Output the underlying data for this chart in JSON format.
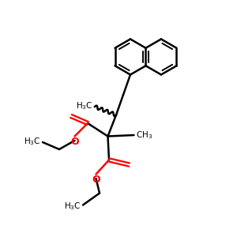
{
  "bg_color": "#ffffff",
  "bond_color": "#000000",
  "oxygen_color": "#ff0000",
  "line_width": 1.8,
  "font_size": 7.5,
  "figsize": [
    3.0,
    3.0
  ],
  "dpi": 100
}
